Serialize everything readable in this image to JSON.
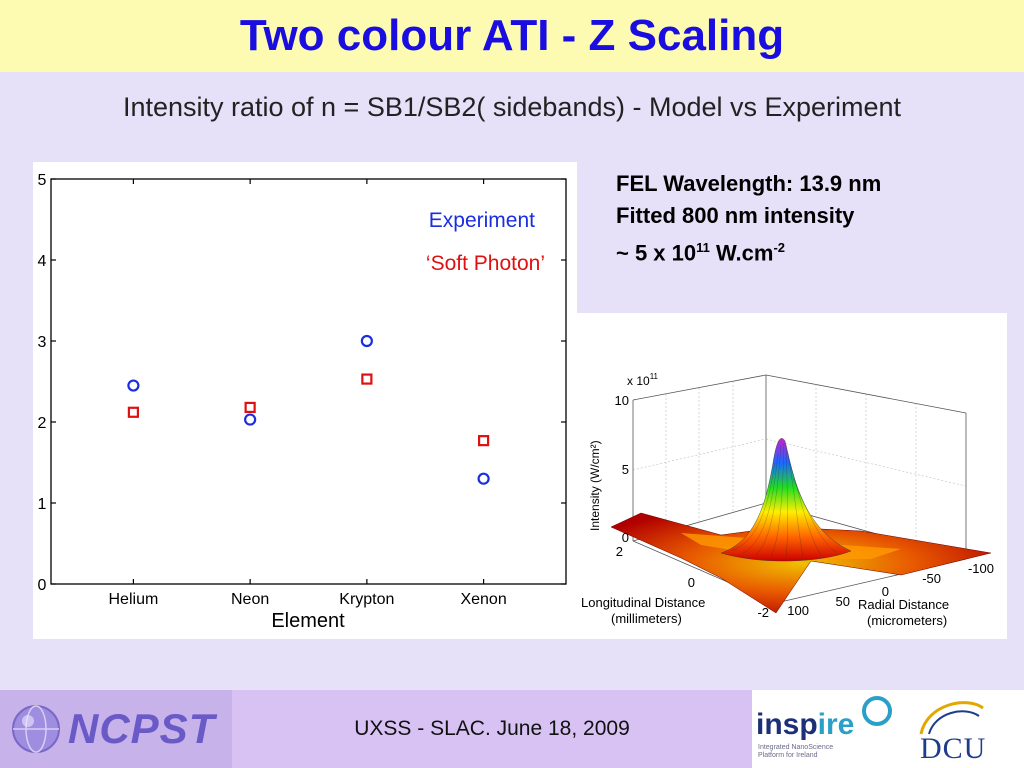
{
  "slide": {
    "title": "Two colour ATI - Z Scaling",
    "subtitle": "Intensity ratio of n = SB1/SB2( sidebands) - Model vs Experiment"
  },
  "info": {
    "line1": "FEL Wavelength: 13.9 nm",
    "line2": "Fitted 800 nm intensity",
    "line3_prefix": "~ 5 x 10",
    "line3_exp": "11",
    "line3_unit": " W.cm",
    "line3_unit_exp": "-2"
  },
  "chart_data": [
    {
      "type": "scatter",
      "categories": [
        "Helium",
        "Neon",
        "Krypton",
        "Xenon"
      ],
      "series": [
        {
          "name": "Experiment",
          "marker": "circle",
          "color": "#1a2ee0",
          "values": [
            2.45,
            2.03,
            3.0,
            1.3
          ]
        },
        {
          "name": "‘Soft Photon’",
          "marker": "square",
          "color": "#e01010",
          "values": [
            2.12,
            2.18,
            2.53,
            1.77
          ]
        }
      ],
      "xlabel": "Element",
      "ylabel": "",
      "ylim": [
        0,
        5
      ],
      "yticks": [
        0,
        1,
        2,
        3,
        4,
        5
      ],
      "legend": "top-right",
      "grid": false
    },
    {
      "type": "surface",
      "zlabel": "Intensity (W/cm²)",
      "z_multiplier": "x 10",
      "z_multiplier_exp": "11",
      "zticks": [
        "0",
        "5",
        "10"
      ],
      "xlabel_line1": "Longitudinal Distance",
      "xlabel_line2": "(millimeters)",
      "xticks": [
        "2",
        "0",
        "-2"
      ],
      "ylabel_line1": "Radial Distance",
      "ylabel_line2": "(micrometers)",
      "yticks": [
        "100",
        "50",
        "0",
        "-50",
        "-100"
      ],
      "peak_value": 10,
      "colormap": "jet"
    }
  ],
  "footer": {
    "center_text": "UXSS - SLAC. June 18, 2009",
    "ncpst": "NCPST",
    "inspire": "insp",
    "inspire_accent": "ire",
    "inspire_sub_1": "Integrated NanoScience",
    "inspire_sub_2": "Platform for Ireland",
    "dcu": "DCU"
  }
}
